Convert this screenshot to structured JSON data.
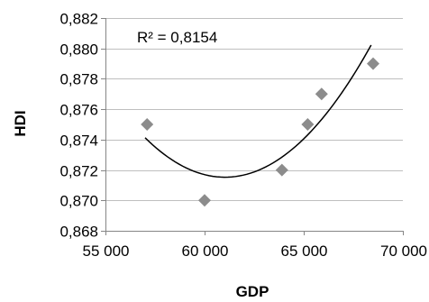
{
  "chart_data": {
    "type": "scatter",
    "title": "",
    "xlabel": "GDP",
    "ylabel": "HDI",
    "xlim": [
      55000,
      70000
    ],
    "ylim": [
      0.868,
      0.882
    ],
    "x_ticks": [
      55000,
      60000,
      65000,
      70000
    ],
    "y_ticks": [
      0.868,
      0.87,
      0.872,
      0.874,
      0.876,
      0.878,
      0.88,
      0.882
    ],
    "x_tick_labels": [
      "55 000",
      "60 000",
      "65 000",
      "70 000"
    ],
    "y_tick_labels": [
      "0,868",
      "0,870",
      "0,872",
      "0,874",
      "0,876",
      "0,878",
      "0,880",
      "0,882"
    ],
    "grid": {
      "horizontal": true,
      "vertical": false
    },
    "legend": "none",
    "series": [
      {
        "marker": "diamond",
        "color": "#8c8c8c",
        "points": [
          {
            "x": 57100,
            "y": 0.875
          },
          {
            "x": 60000,
            "y": 0.87
          },
          {
            "x": 63900,
            "y": 0.872
          },
          {
            "x": 65200,
            "y": 0.875
          },
          {
            "x": 65900,
            "y": 0.877
          },
          {
            "x": 68500,
            "y": 0.879
          }
        ]
      }
    ],
    "trendline": {
      "type": "polynomial",
      "order": 2,
      "color": "#000000",
      "x_range": [
        57000,
        68400
      ],
      "curve": [
        {
          "x": 57000,
          "y": 0.8741
        },
        {
          "x": 59000,
          "y": 0.8723
        },
        {
          "x": 61000,
          "y": 0.8715
        },
        {
          "x": 62000,
          "y": 0.87155
        },
        {
          "x": 64000,
          "y": 0.8728
        },
        {
          "x": 66000,
          "y": 0.8758
        },
        {
          "x": 68400,
          "y": 0.8801
        }
      ]
    },
    "annotation": "R² = 0,8154"
  }
}
